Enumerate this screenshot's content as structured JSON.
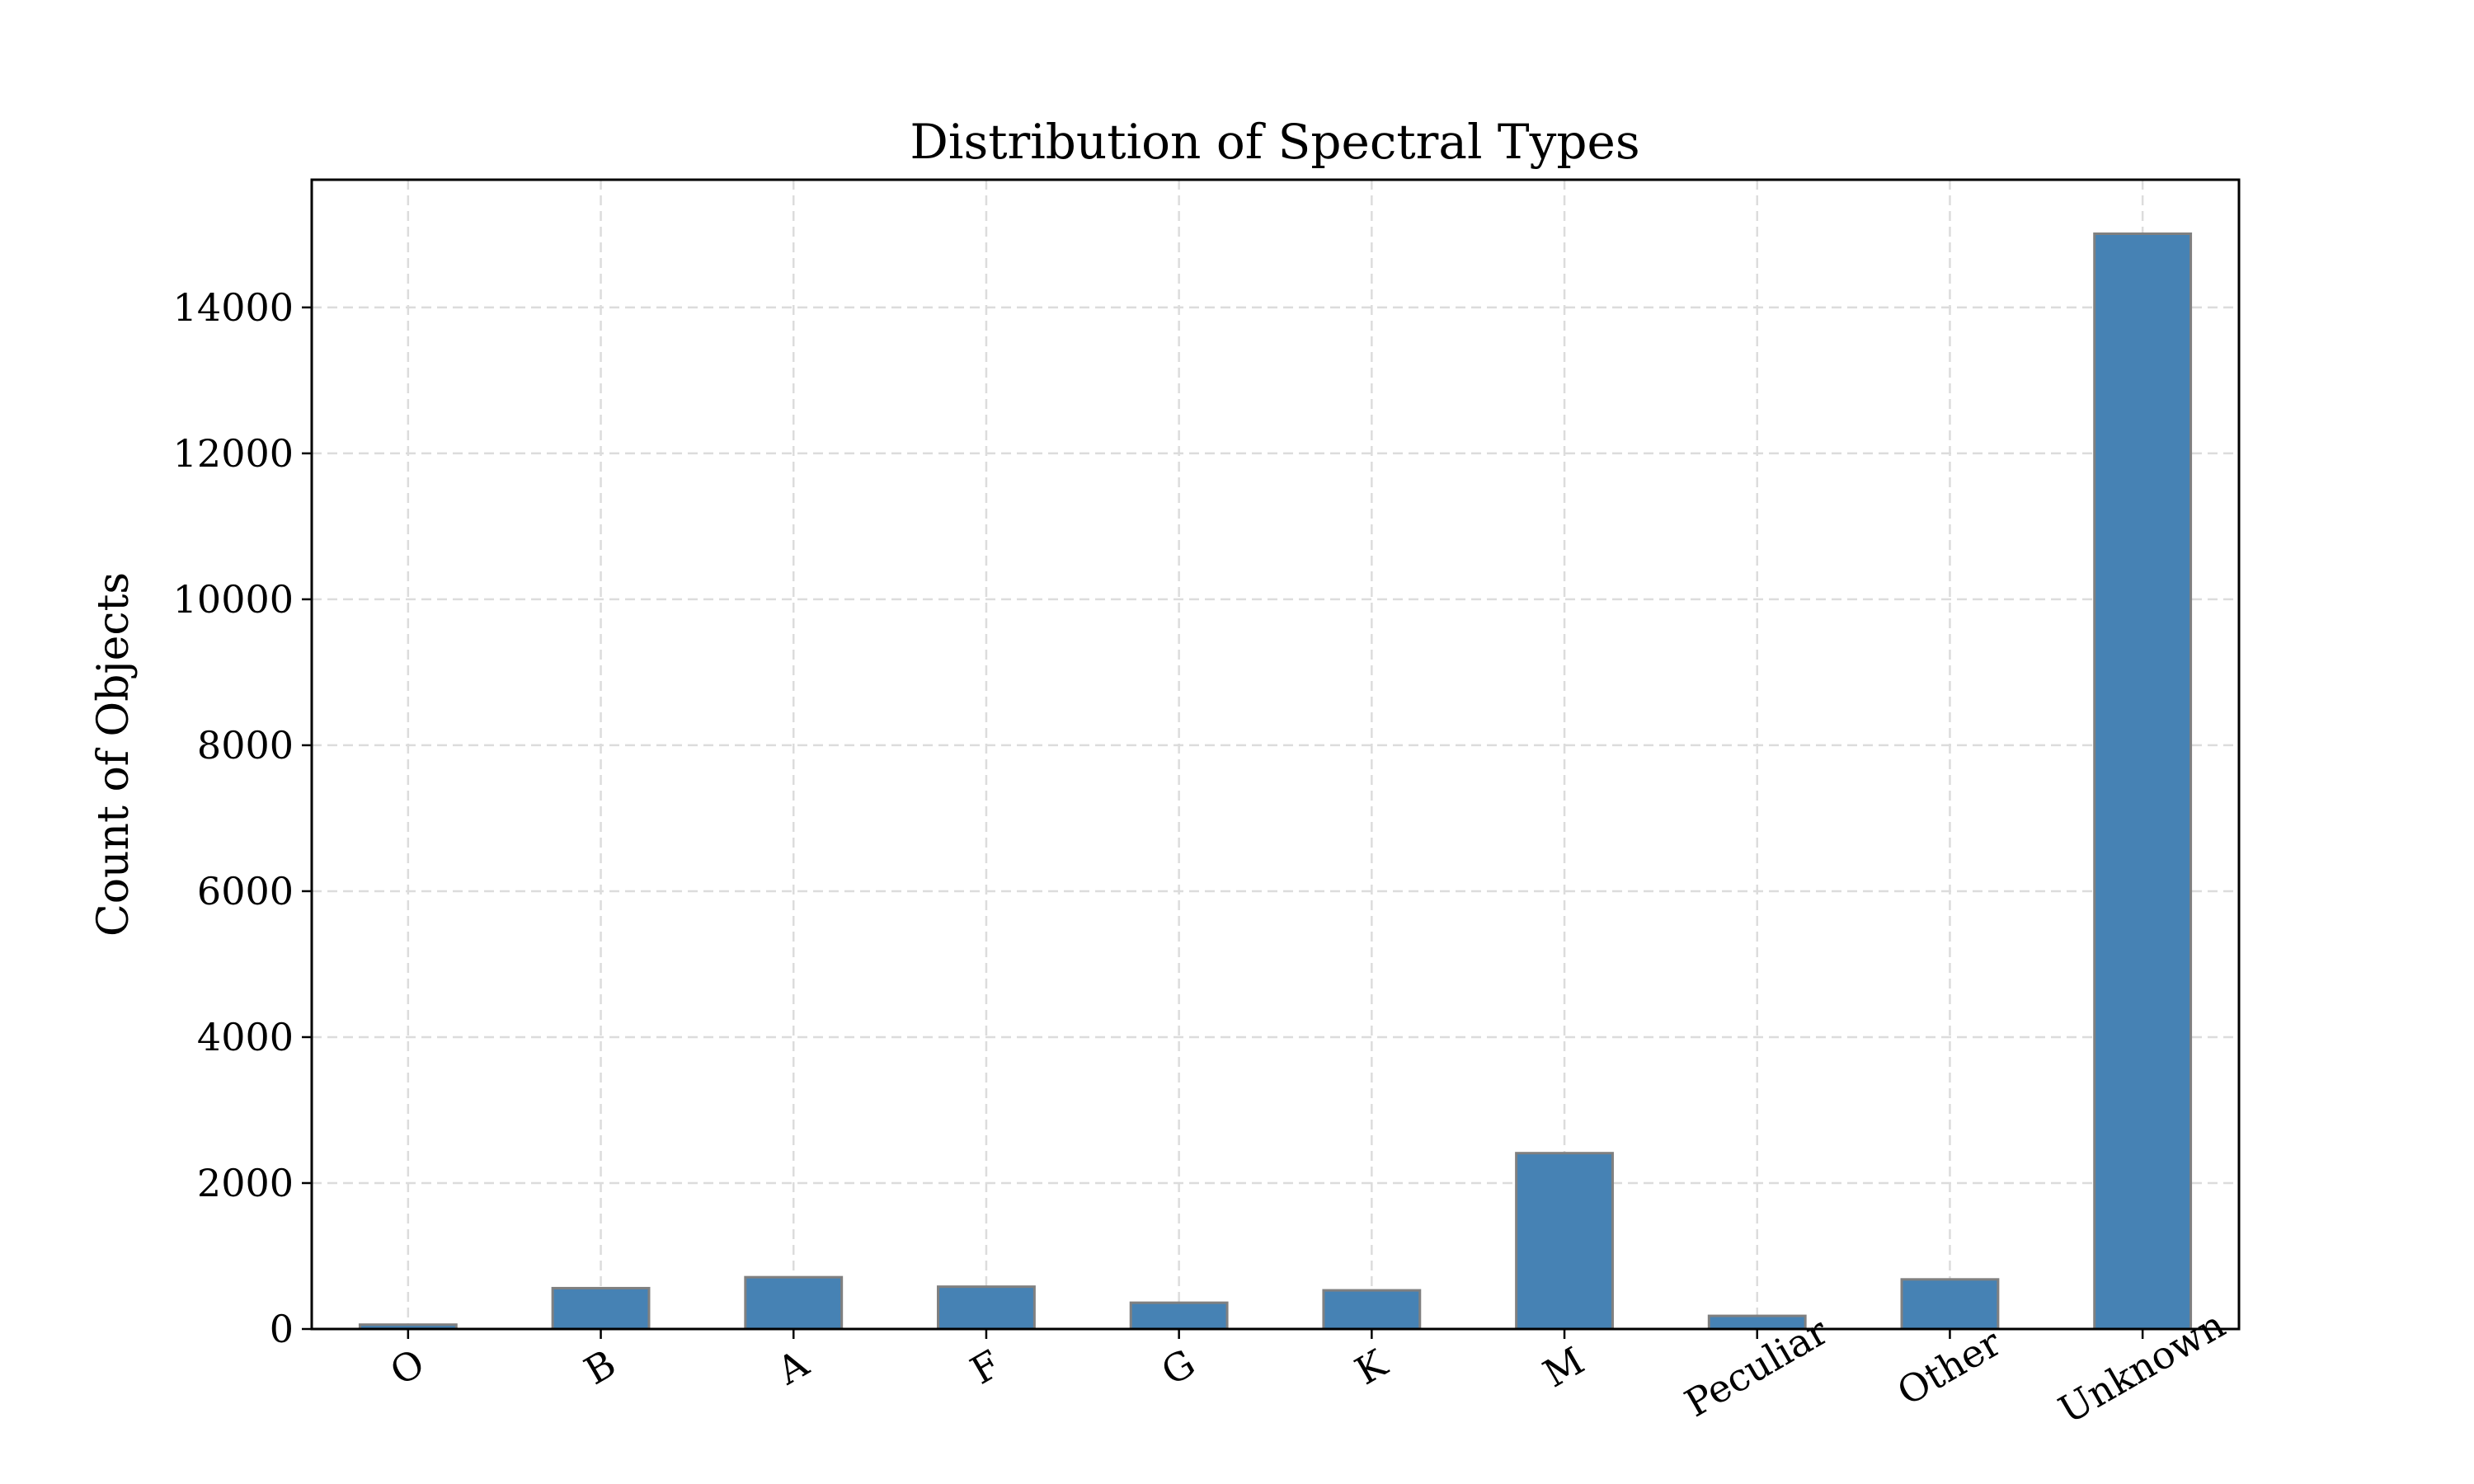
{
  "chart_data": {
    "type": "bar",
    "title": "Distribution of Spectral Types",
    "xlabel": "",
    "ylabel": "Count of Objects",
    "categories": [
      "O",
      "B",
      "A",
      "F",
      "G",
      "K",
      "M",
      "Peculiar",
      "Other",
      "Unknown"
    ],
    "values": [
      60,
      560,
      710,
      580,
      360,
      530,
      2410,
      180,
      680,
      15010
    ],
    "ylim": [
      0,
      15750
    ],
    "yticks": [
      0,
      2000,
      4000,
      6000,
      8000,
      10000,
      12000,
      14000
    ],
    "grid": true,
    "bar_color": "#4682b4",
    "bar_edge_color": "#808080",
    "grid_color": "#dcdcdc"
  }
}
